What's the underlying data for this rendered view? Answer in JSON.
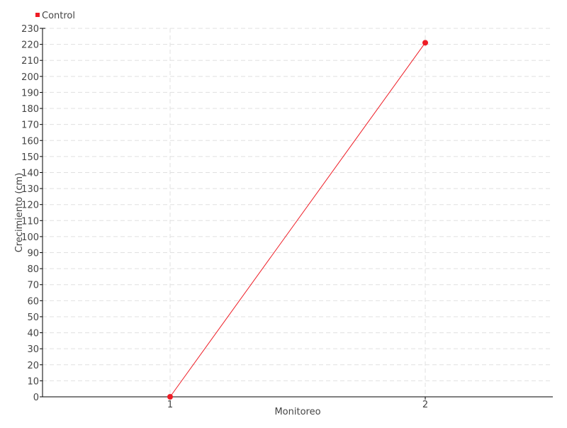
{
  "chart_data": {
    "type": "line",
    "title": "",
    "xlabel": "Monitoreo",
    "ylabel": "Crecimiento (cm)",
    "categories": [
      "1",
      "2"
    ],
    "series": [
      {
        "name": "Control",
        "values": [
          0,
          221
        ],
        "color": "#ee1c25"
      }
    ],
    "ylim": [
      0,
      230
    ],
    "ytick_step": 10,
    "grid": true,
    "legend_position": "top-left"
  }
}
